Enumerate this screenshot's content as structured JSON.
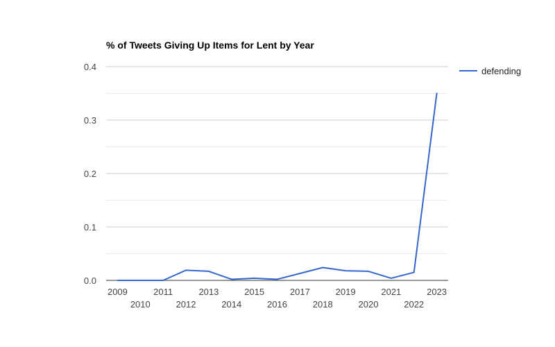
{
  "chart_data": {
    "type": "line",
    "title": "% of Tweets Giving Up Items for Lent by Year",
    "xlabel": "",
    "ylabel": "",
    "x": [
      "2009",
      "2010",
      "2011",
      "2012",
      "2013",
      "2014",
      "2015",
      "2016",
      "2017",
      "2018",
      "2019",
      "2020",
      "2021",
      "2022",
      "2023"
    ],
    "series": [
      {
        "name": "defending",
        "color": "#3366cc",
        "values": [
          0.0,
          0.0,
          0.0,
          0.019,
          0.017,
          0.002,
          0.004,
          0.002,
          0.013,
          0.024,
          0.018,
          0.017,
          0.004,
          0.015,
          0.35
        ]
      }
    ],
    "ylim": [
      0,
      0.4
    ],
    "yticks": [
      "0.0",
      "0.1",
      "0.2",
      "0.3",
      "0.4"
    ],
    "ytick_values": [
      0,
      0.1,
      0.2,
      0.3,
      0.4
    ],
    "grid": true,
    "minor_grid": true,
    "legend_position": "right"
  }
}
